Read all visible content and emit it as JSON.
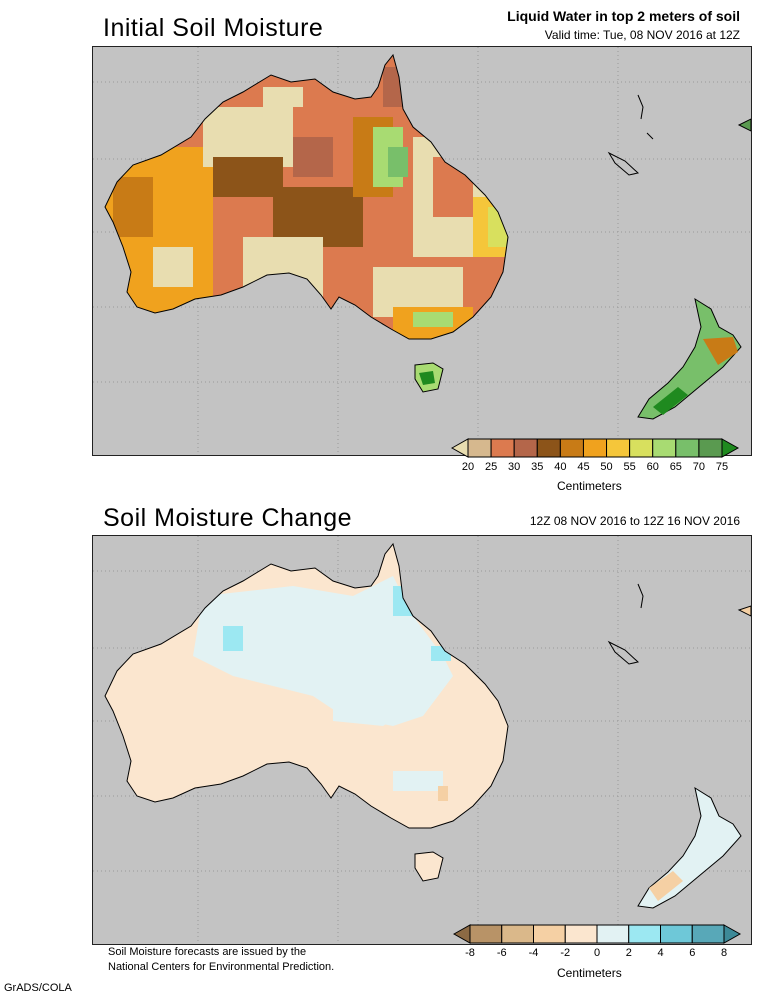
{
  "top": {
    "title": "Initial Soil Moisture",
    "header_main": "Liquid Water in top 2 meters of soil",
    "header_sub": "Valid time: Tue, 08 NOV 2016 at 12Z",
    "colorbar": {
      "labels": [
        "20",
        "25",
        "30",
        "35",
        "40",
        "45",
        "50",
        "55",
        "60",
        "65",
        "70",
        "75"
      ],
      "colors": [
        "#e8ddb0",
        "#d6b88e",
        "#dc7a4f",
        "#b4664a",
        "#8c5419",
        "#c87b16",
        "#f0a21e",
        "#f5c63a",
        "#d8e05e",
        "#a8db72",
        "#78bf6a",
        "#5a9a50",
        "#1f8a1f"
      ],
      "unit": "Centimeters"
    }
  },
  "bottom": {
    "title": "Soil Moisture Change",
    "header_sub": "12Z 08 NOV 2016 to 12Z 16 NOV 2016",
    "colorbar": {
      "labels": [
        "-8",
        "-6",
        "-4",
        "-2",
        "0",
        "2",
        "4",
        "6",
        "8"
      ],
      "colors": [
        "#8c6a44",
        "#b89367",
        "#dab88a",
        "#f5d0a4",
        "#fbe6cf",
        "#e2f2f3",
        "#9ce8f2",
        "#6ec8d8",
        "#58a8b8",
        "#3d8a98"
      ],
      "unit": "Centimeters"
    }
  },
  "footer": {
    "note_line1": "Soil Moisture forecasts are issued by the",
    "note_line2": "National Centers for Environmental Prediction.",
    "credit": "GrADS/COLA"
  }
}
